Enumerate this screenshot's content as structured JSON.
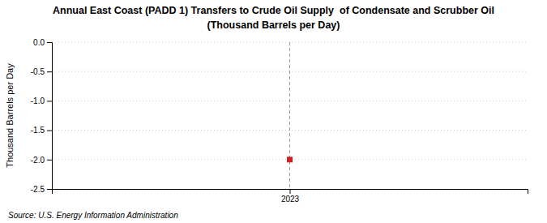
{
  "chart_data": {
    "type": "scatter",
    "title": "Annual East Coast (PADD 1) Transfers to Crude Oil Supply  of Condensate and Scrubber Oil",
    "subtitle": "(Thousand Barrels per Day)",
    "ylabel": "Thousand Barrels per Day",
    "annotations": [
      "Source: U.S. Energy Information Administration"
    ],
    "x": [
      2023
    ],
    "values": [
      -2.0
    ],
    "color": "#cc2222",
    "marker": "square",
    "xlim": [
      2022.6,
      2023.4
    ],
    "xticks": [
      2023
    ],
    "ylim": [
      -2.5,
      0.0
    ],
    "yticks": [
      {
        "value": 0.0,
        "label": "0.0"
      },
      {
        "value": -0.5,
        "label": "-0.5"
      },
      {
        "value": -1.0,
        "label": "-1.0"
      },
      {
        "value": -1.5,
        "label": "-1.5"
      },
      {
        "value": -2.0,
        "label": "-2.0"
      },
      {
        "value": -2.5,
        "label": "-2.5"
      }
    ],
    "grid": true,
    "vlines": [
      2023
    ]
  }
}
